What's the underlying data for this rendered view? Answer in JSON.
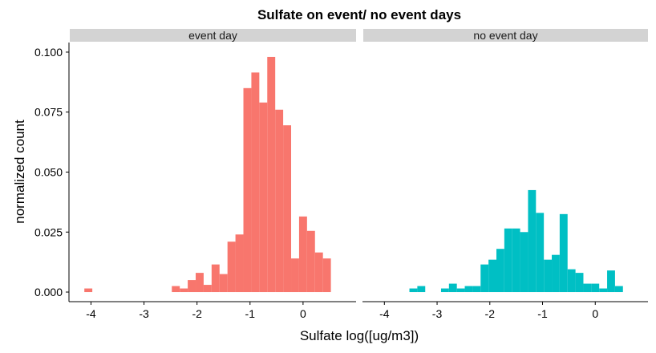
{
  "chart_data": {
    "type": "bar",
    "title": "Sulfate on event/ no event days",
    "xlabel": "Sulfate log([ug/m3])",
    "ylabel": "normalized count",
    "xlim": [
      -4.4,
      1.0
    ],
    "ylim": [
      -0.004,
      0.104
    ],
    "x_ticks": [
      -4,
      -3,
      -2,
      -1,
      0
    ],
    "y_ticks": [
      0.0,
      0.025,
      0.05,
      0.075,
      0.1
    ],
    "y_tick_labels": [
      "0.000",
      "0.025",
      "0.050",
      "0.075",
      "0.100"
    ],
    "bin_width": 0.15,
    "panels": [
      {
        "strip_label": "event day",
        "color": "#F8766D",
        "bins": [
          {
            "x": -4.05,
            "y": 0.0015
          },
          {
            "x": -2.4,
            "y": 0.0025
          },
          {
            "x": -2.25,
            "y": 0.0015
          },
          {
            "x": -2.1,
            "y": 0.005
          },
          {
            "x": -1.95,
            "y": 0.008
          },
          {
            "x": -1.8,
            "y": 0.003
          },
          {
            "x": -1.65,
            "y": 0.0115
          },
          {
            "x": -1.5,
            "y": 0.0075
          },
          {
            "x": -1.35,
            "y": 0.021
          },
          {
            "x": -1.2,
            "y": 0.024
          },
          {
            "x": -1.05,
            "y": 0.085
          },
          {
            "x": -0.9,
            "y": 0.0915
          },
          {
            "x": -0.75,
            "y": 0.079
          },
          {
            "x": -0.6,
            "y": 0.098
          },
          {
            "x": -0.45,
            "y": 0.076
          },
          {
            "x": -0.3,
            "y": 0.0695
          },
          {
            "x": -0.15,
            "y": 0.014
          },
          {
            "x": 0.0,
            "y": 0.0315
          },
          {
            "x": 0.15,
            "y": 0.0255
          },
          {
            "x": 0.3,
            "y": 0.0165
          },
          {
            "x": 0.45,
            "y": 0.014
          }
        ]
      },
      {
        "strip_label": "no event day",
        "color": "#00BFC4",
        "bins": [
          {
            "x": -3.45,
            "y": 0.0015
          },
          {
            "x": -3.3,
            "y": 0.0025
          },
          {
            "x": -2.85,
            "y": 0.0015
          },
          {
            "x": -2.7,
            "y": 0.0035
          },
          {
            "x": -2.55,
            "y": 0.0015
          },
          {
            "x": -2.4,
            "y": 0.0025
          },
          {
            "x": -2.25,
            "y": 0.0025
          },
          {
            "x": -2.1,
            "y": 0.0115
          },
          {
            "x": -1.95,
            "y": 0.0135
          },
          {
            "x": -1.8,
            "y": 0.018
          },
          {
            "x": -1.65,
            "y": 0.0265
          },
          {
            "x": -1.5,
            "y": 0.0265
          },
          {
            "x": -1.35,
            "y": 0.025
          },
          {
            "x": -1.2,
            "y": 0.0425
          },
          {
            "x": -1.05,
            "y": 0.033
          },
          {
            "x": -0.9,
            "y": 0.0135
          },
          {
            "x": -0.75,
            "y": 0.0155
          },
          {
            "x": -0.6,
            "y": 0.0325
          },
          {
            "x": -0.45,
            "y": 0.0095
          },
          {
            "x": -0.3,
            "y": 0.008
          },
          {
            "x": -0.15,
            "y": 0.0035
          },
          {
            "x": 0.0,
            "y": 0.0035
          },
          {
            "x": 0.15,
            "y": 0.0015
          },
          {
            "x": 0.3,
            "y": 0.009
          },
          {
            "x": 0.45,
            "y": 0.0025
          }
        ]
      }
    ]
  }
}
